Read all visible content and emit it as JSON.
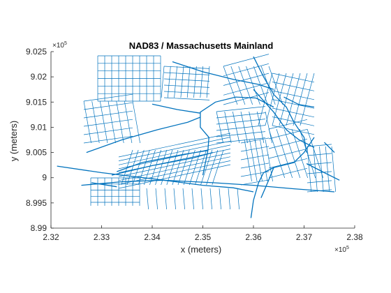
{
  "chart_data": {
    "type": "line",
    "title": "NAD83 / Massachusetts Mainland",
    "xlabel": "x (meters)",
    "ylabel": "y (meters)",
    "x_exponent": {
      "base": "×10",
      "power": "5"
    },
    "y_exponent": {
      "base": "×10",
      "power": "5"
    },
    "xlim": [
      2.32,
      2.38
    ],
    "ylim": [
      8.99,
      9.025
    ],
    "x_ticks": [
      2.32,
      2.33,
      2.34,
      2.35,
      2.36,
      2.37,
      2.38
    ],
    "x_tick_labels": [
      "2.32",
      "2.33",
      "2.34",
      "2.35",
      "2.36",
      "2.37",
      "2.38"
    ],
    "y_ticks": [
      8.99,
      8.995,
      9.0,
      9.005,
      9.01,
      9.015,
      9.02,
      9.025
    ],
    "y_tick_labels": [
      "8.99",
      "8.995",
      "9",
      "9.005",
      "9.01",
      "9.015",
      "9.02",
      "9.025"
    ],
    "grid": false,
    "box": false,
    "line_color": "#0072BD",
    "axis_color": "#262626",
    "series": [
      {
        "segments": [
          [
            [
              2.3212,
              9.0023
            ],
            [
              2.33,
              9.001
            ],
            [
              2.34,
              8.9998
            ],
            [
              2.35,
              8.9985
            ],
            [
              2.356,
              8.998
            ],
            [
              2.36,
              8.9972
            ]
          ],
          [
            [
              2.326,
              8.9985
            ],
            [
              2.334,
              8.9992
            ],
            [
              2.342,
              8.9995
            ],
            [
              2.352,
              8.999
            ],
            [
              2.36,
              8.9985
            ],
            [
              2.368,
              8.9978
            ],
            [
              2.376,
              8.9972
            ]
          ],
          [
            [
              2.328,
              8.999
            ],
            [
              2.333,
              8.9982
            ]
          ],
          [
            [
              2.332,
              9.0005
            ],
            [
              2.34,
              9.0024
            ],
            [
              2.348,
              9.0039
            ],
            [
              2.352,
              9.005
            ]
          ],
          [
            [
              2.333,
              9.0012
            ],
            [
              2.338,
              9.003
            ],
            [
              2.346,
              9.0046
            ],
            [
              2.351,
              9.0054
            ]
          ],
          [
            [
              2.35,
              9.0005
            ],
            [
              2.351,
              9.0054
            ],
            [
              2.3512,
              9.008
            ],
            [
              2.3495,
              9.01
            ],
            [
              2.3495,
              9.013
            ],
            [
              2.3525,
              9.015
            ],
            [
              2.3565,
              9.016
            ],
            [
              2.3605,
              9.0158
            ],
            [
              2.364,
              9.014
            ]
          ],
          [
            [
              2.327,
              9.005
            ],
            [
              2.334,
              9.0075
            ],
            [
              2.341,
              9.0095
            ],
            [
              2.347,
              9.011
            ],
            [
              2.3495,
              9.012
            ]
          ],
          [
            [
              2.34,
              9.0146
            ],
            [
              2.345,
              9.0135
            ],
            [
              2.3495,
              9.0128
            ]
          ],
          [
            [
              2.344,
              9.023
            ],
            [
              2.35,
              9.021
            ],
            [
              2.356,
              9.0195
            ],
            [
              2.361,
              9.0185
            ],
            [
              2.364,
              9.0175
            ]
          ],
          [
            [
              2.36,
              9.024
            ],
            [
              2.362,
              9.02
            ],
            [
              2.364,
              9.0165
            ],
            [
              2.3665,
              9.014
            ],
            [
              2.368,
              9.011
            ]
          ],
          [
            [
              2.366,
              9.016
            ],
            [
              2.369,
              9.0145
            ],
            [
              2.372,
              9.014
            ]
          ],
          [
            [
              2.372,
              9.008
            ],
            [
              2.37,
              9.005
            ],
            [
              2.368,
              9.003
            ],
            [
              2.364,
              9.002
            ],
            [
              2.362,
              9.001
            ],
            [
              2.361,
              8.999
            ],
            [
              2.36,
              8.9955
            ],
            [
              2.3595,
              8.992
            ]
          ],
          [
            [
              2.364,
              9.002
            ],
            [
              2.363,
              8.9995
            ],
            [
              2.3615,
              8.996
            ]
          ],
          [
            [
              2.3705,
              9.0028
            ],
            [
              2.374,
              9.001
            ],
            [
              2.377,
              8.9995
            ]
          ],
          [
            [
              2.374,
              9.007
            ],
            [
              2.376,
              9.005
            ]
          ],
          [
            [
              2.36,
              9.0175
            ],
            [
              2.364,
              9.013
            ],
            [
              2.3665,
              9.0095
            ],
            [
              2.369,
              9.0075
            ],
            [
              2.372,
              9.006
            ]
          ],
          [
            [
              2.368,
              9.011
            ],
            [
              2.37,
              9.008
            ],
            [
              2.3705,
              9.005
            ]
          ]
        ]
      }
    ]
  }
}
